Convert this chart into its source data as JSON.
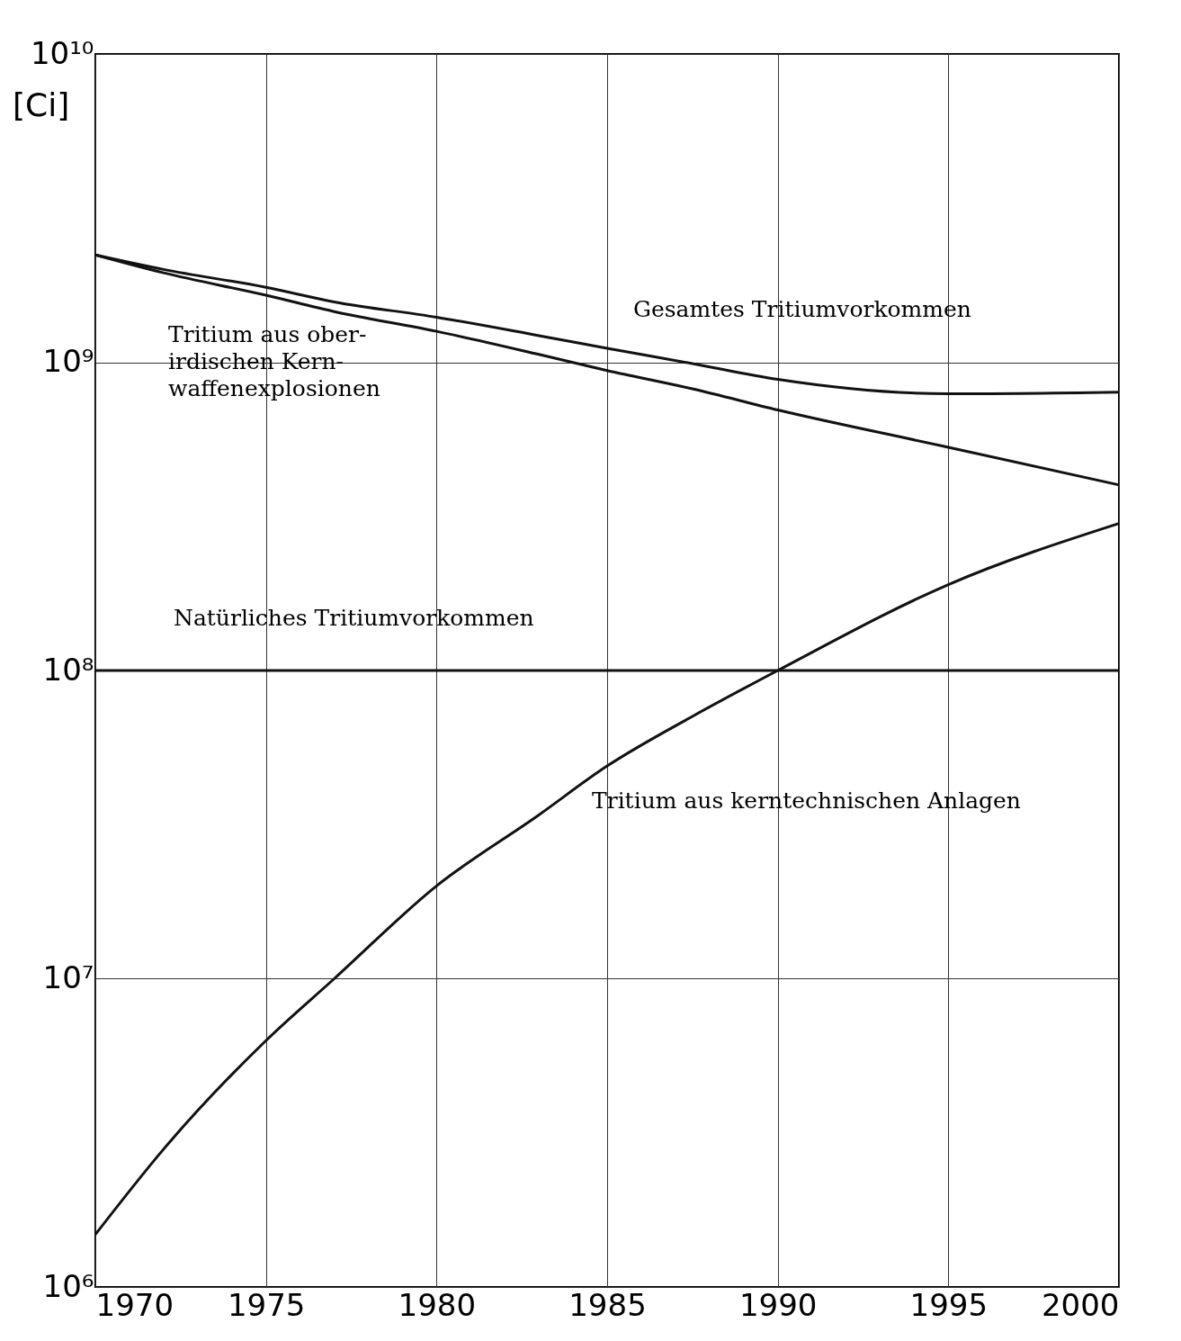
{
  "chart_data": {
    "type": "line",
    "ylabel": "[Ci]",
    "log": true,
    "grid": true,
    "marker": "none",
    "line_style": "solid",
    "xlim": [
      1970,
      2000
    ],
    "xticks": [
      1970,
      1975,
      1980,
      1985,
      1990,
      1995,
      2000
    ],
    "ylim": [
      1000000,
      10000000000
    ],
    "yticks": [
      {
        "value": 1000000,
        "label": "10⁶"
      },
      {
        "value": 10000000,
        "label": "10⁷"
      },
      {
        "value": 100000000,
        "label": "10⁸"
      },
      {
        "value": 1000000000,
        "label": "10⁹"
      },
      {
        "value": 10000000000,
        "label": "10¹⁰"
      }
    ],
    "x": [
      1970,
      1972,
      1975,
      1977,
      1980,
      1983,
      1985,
      1987.5,
      1990,
      1995,
      2000
    ],
    "series": [
      {
        "name": "Gesamtes Tritiumvorkommen",
        "color": "#111111",
        "values": [
          2230000000,
          2000000000,
          1750000000,
          1570000000,
          1400000000,
          1220000000,
          1110000000,
          990000000,
          880000000,
          790000000,
          800000000
        ]
      },
      {
        "name": "Tritium aus ober-\nirdischen Kern-\nwaffenexplosionen",
        "color": "#111111",
        "values": [
          2230000000,
          1950000000,
          1650000000,
          1460000000,
          1260000000,
          1060000000,
          940000000,
          820000000,
          700000000,
          530000000,
          400000000
        ]
      },
      {
        "name": "Natürliches Tritiumvorkommen",
        "color": "#111111",
        "values": [
          100000000,
          100000000,
          100000000,
          100000000,
          100000000,
          100000000,
          100000000,
          100000000,
          100000000,
          100000000,
          100000000
        ]
      },
      {
        "name": "Tritium aus kerntechnischen Anlagen",
        "color": "#111111",
        "values": [
          1480000,
          2800000,
          6300000,
          10000000,
          20000000,
          34000000,
          49000000,
          71000000,
          100000000,
          190000000,
          300000000
        ]
      }
    ]
  }
}
